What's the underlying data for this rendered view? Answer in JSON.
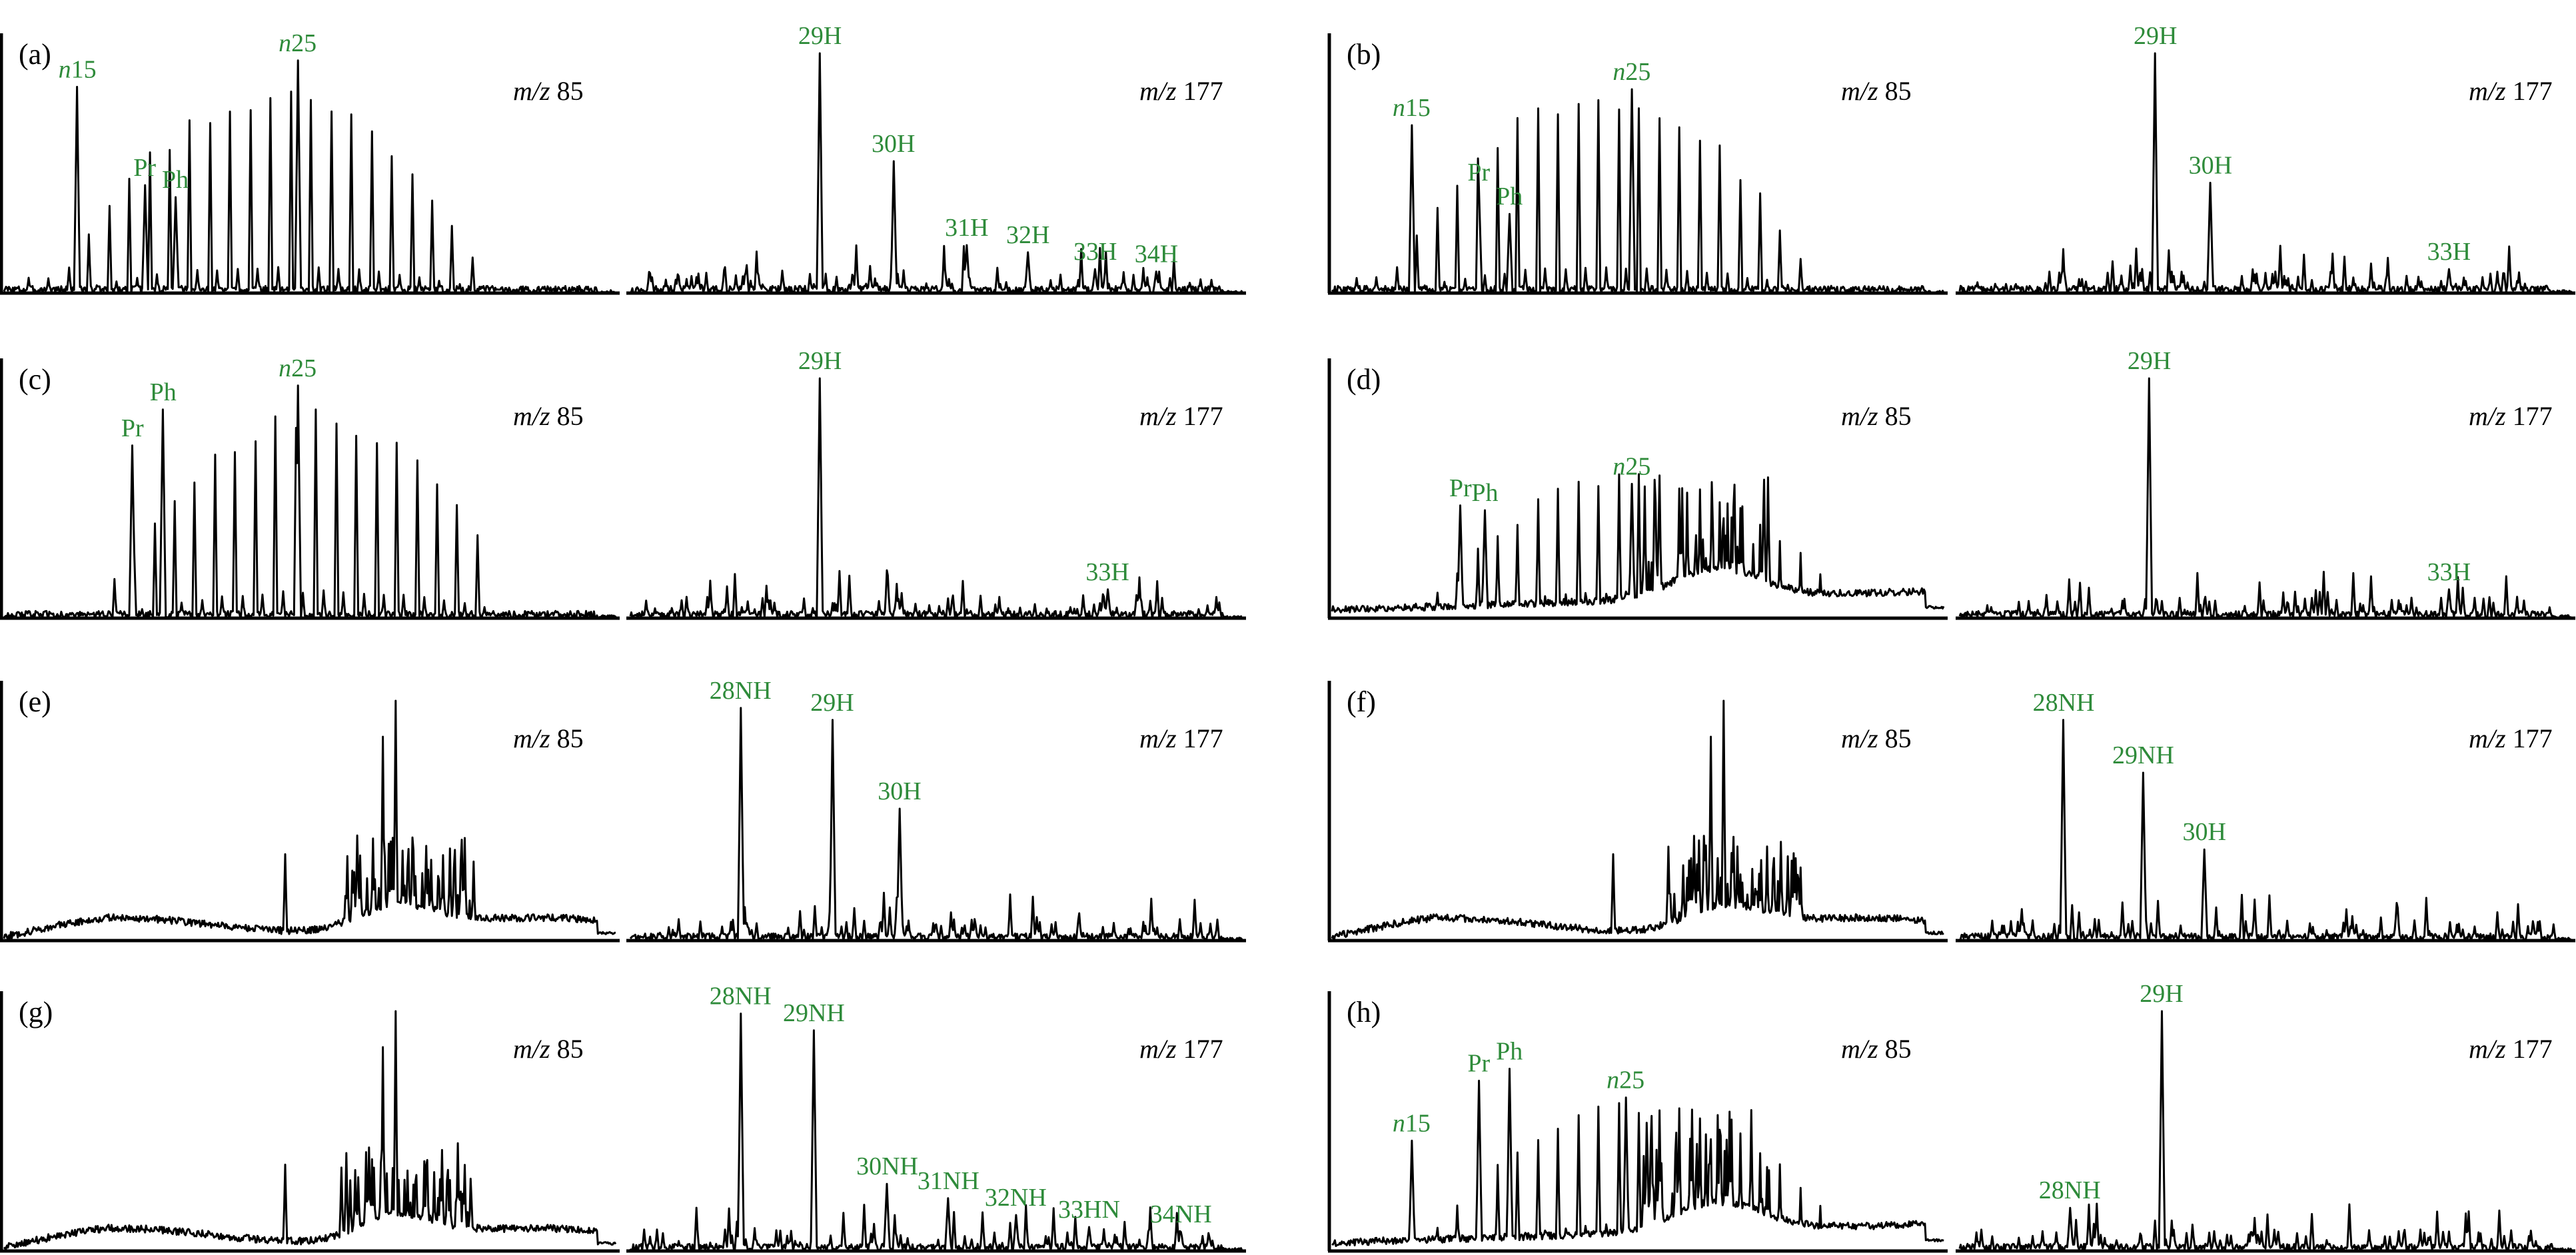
{
  "label_color": "#2e8b3a",
  "chart_data": [
    {
      "panel": "(a)",
      "type": "line",
      "chromatograms": [
        {
          "ion": "85",
          "profile": "alkane-front",
          "peaks": [
            {
              "label": "n15",
              "italic_n": true
            },
            {
              "label": "Pr"
            },
            {
              "label": "Ph"
            },
            {
              "label": "n25",
              "italic_n": true
            }
          ]
        },
        {
          "ion": "177",
          "profile": "hopane",
          "peaks": [
            {
              "label": "29H"
            },
            {
              "label": "30H"
            },
            {
              "label": "31H"
            },
            {
              "label": "32H"
            },
            {
              "label": "33H"
            },
            {
              "label": "34H"
            }
          ]
        }
      ]
    },
    {
      "panel": "(b)",
      "type": "line",
      "chromatograms": [
        {
          "ion": "85",
          "profile": "alkane-front",
          "peaks": [
            {
              "label": "n15",
              "italic_n": true
            },
            {
              "label": "Pr"
            },
            {
              "label": "Ph"
            },
            {
              "label": "n25",
              "italic_n": true
            }
          ]
        },
        {
          "ion": "177",
          "profile": "hopane",
          "peaks": [
            {
              "label": "29H"
            },
            {
              "label": "30H"
            },
            {
              "label": "33H"
            }
          ]
        }
      ]
    },
    {
      "panel": "(c)",
      "type": "line",
      "chromatograms": [
        {
          "ion": "85",
          "profile": "alkane-mid",
          "peaks": [
            {
              "label": "Pr"
            },
            {
              "label": "Ph"
            },
            {
              "label": "n25",
              "italic_n": true
            }
          ]
        },
        {
          "ion": "177",
          "profile": "hopane",
          "peaks": [
            {
              "label": "29H"
            },
            {
              "label": "33H"
            }
          ]
        }
      ]
    },
    {
      "panel": "(d)",
      "type": "line",
      "chromatograms": [
        {
          "ion": "85",
          "profile": "alkane-hump",
          "peaks": [
            {
              "label": "Pr"
            },
            {
              "label": "Ph"
            },
            {
              "label": "n25",
              "italic_n": true
            }
          ]
        },
        {
          "ion": "177",
          "profile": "hopane",
          "peaks": [
            {
              "label": "29H"
            },
            {
              "label": "33H"
            }
          ]
        }
      ]
    },
    {
      "panel": "(e)",
      "type": "line",
      "chromatograms": [
        {
          "ion": "85",
          "profile": "hump",
          "peaks": []
        },
        {
          "ion": "177",
          "profile": "norhopane",
          "peaks": [
            {
              "label": "28NH"
            },
            {
              "label": "29H"
            },
            {
              "label": "30H"
            }
          ]
        }
      ]
    },
    {
      "panel": "(f)",
      "type": "line",
      "chromatograms": [
        {
          "ion": "85",
          "profile": "hump",
          "peaks": []
        },
        {
          "ion": "177",
          "profile": "norhopane",
          "peaks": [
            {
              "label": "28NH"
            },
            {
              "label": "29NH"
            },
            {
              "label": "30H"
            }
          ]
        }
      ]
    },
    {
      "panel": "(g)",
      "type": "line",
      "chromatograms": [
        {
          "ion": "85",
          "profile": "hump",
          "peaks": []
        },
        {
          "ion": "177",
          "profile": "norhopane",
          "peaks": [
            {
              "label": "28NH"
            },
            {
              "label": "29NH"
            },
            {
              "label": "30NH"
            },
            {
              "label": "31NH"
            },
            {
              "label": "32NH"
            },
            {
              "label": "33HN"
            },
            {
              "label": "34NH"
            }
          ]
        }
      ]
    },
    {
      "panel": "(h)",
      "type": "line",
      "chromatograms": [
        {
          "ion": "85",
          "profile": "alkane-hump",
          "peaks": [
            {
              "label": "n15",
              "italic_n": true
            },
            {
              "label": "Pr"
            },
            {
              "label": "Ph"
            },
            {
              "label": "n25",
              "italic_n": true
            }
          ]
        },
        {
          "ion": "177",
          "profile": "hopane",
          "peaks": [
            {
              "label": "28NH"
            },
            {
              "label": "29H"
            }
          ]
        }
      ]
    }
  ]
}
